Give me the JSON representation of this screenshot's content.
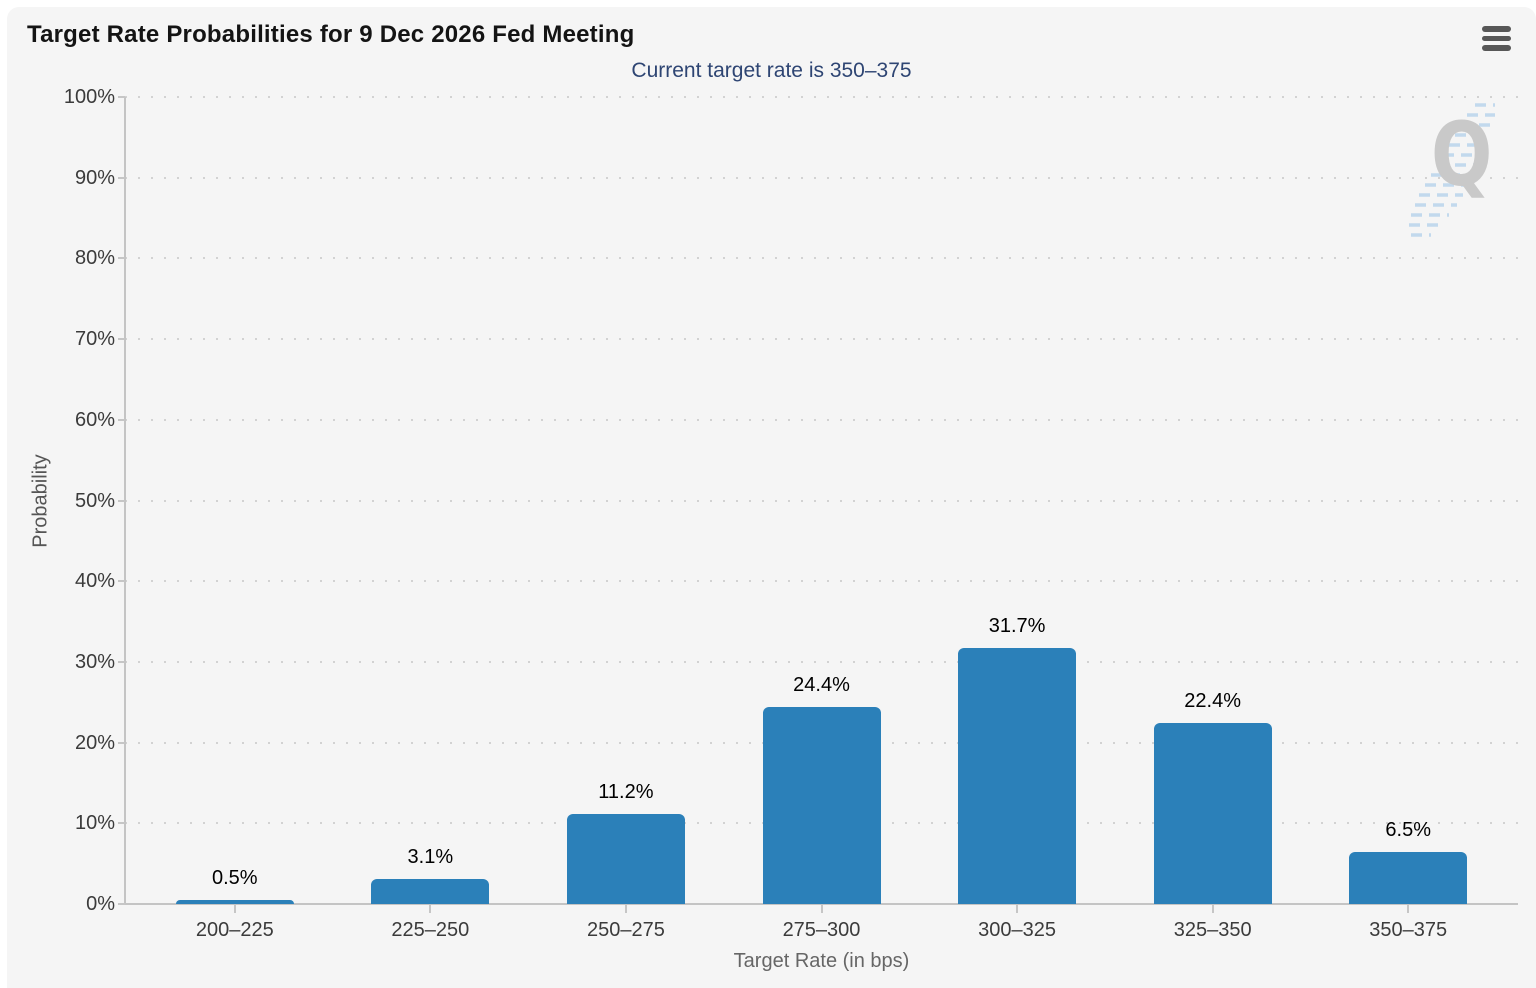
{
  "header": {
    "menu_icon": "hamburger-icon"
  },
  "watermark": {
    "text": "Q"
  },
  "chart_data": {
    "type": "bar",
    "title": "Target Rate Probabilities for 9 Dec 2026 Fed Meeting",
    "subtitle": "Current target rate is 350–375",
    "xlabel": "Target Rate (in bps)",
    "ylabel": "Probability",
    "categories": [
      "200–225",
      "225–250",
      "250–275",
      "275–300",
      "300–325",
      "325–350",
      "350–375"
    ],
    "values": [
      0.5,
      3.1,
      11.2,
      24.4,
      31.7,
      22.4,
      6.5
    ],
    "data_labels": [
      "0.5%",
      "3.1%",
      "11.2%",
      "24.4%",
      "31.7%",
      "22.4%",
      "6.5%"
    ],
    "ylim": [
      0,
      100
    ],
    "yticks": [
      {
        "value": 0,
        "label": "0%"
      },
      {
        "value": 10,
        "label": "10%"
      },
      {
        "value": 20,
        "label": "20%"
      },
      {
        "value": 30,
        "label": "30%"
      },
      {
        "value": 40,
        "label": "40%"
      },
      {
        "value": 50,
        "label": "50%"
      },
      {
        "value": 60,
        "label": "60%"
      },
      {
        "value": 70,
        "label": "70%"
      },
      {
        "value": 80,
        "label": "80%"
      },
      {
        "value": 90,
        "label": "90%"
      },
      {
        "value": 100,
        "label": "100%"
      }
    ],
    "grid": "dotted-horizontal",
    "legend": "none",
    "bar_color": "#2b80b9",
    "background_color": "#f5f5f5",
    "title_color": "#141414",
    "subtitle_color": "#2e4573"
  }
}
